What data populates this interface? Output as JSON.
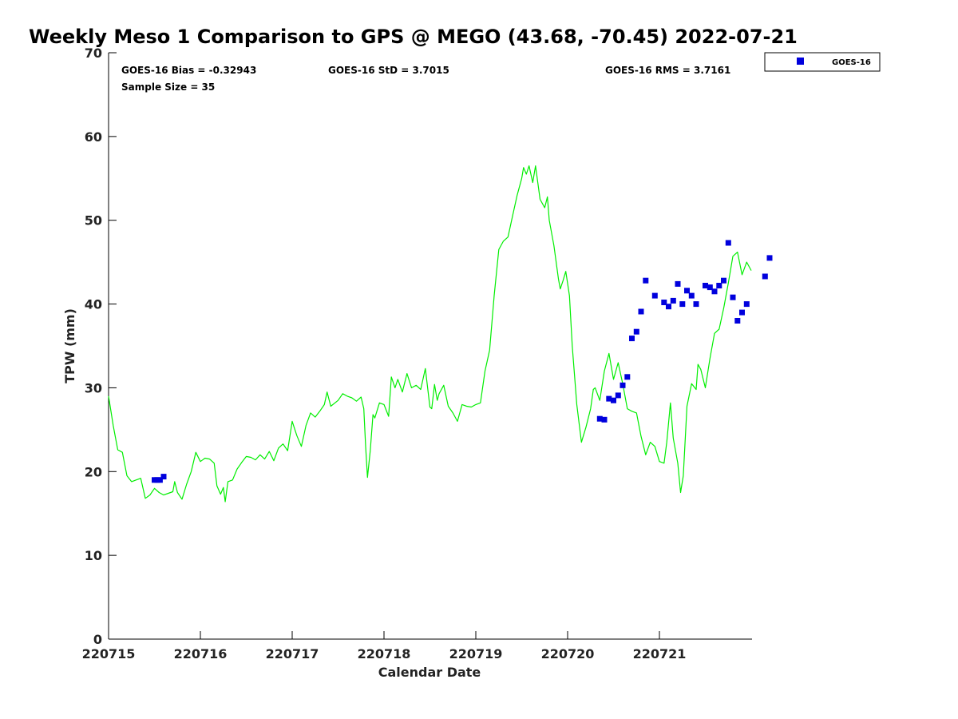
{
  "chart_data": {
    "type": "scatter",
    "title": "Weekly Meso 1 Comparison to GPS @ MEGO (43.68, -70.45) 2022-07-21",
    "xlabel": "Calendar Date",
    "ylabel": "TPW (mm)",
    "xlim": [
      0,
      7
    ],
    "ylim": [
      0,
      70
    ],
    "x_unit": "days from 220715",
    "x_ticks": [
      {
        "value": 0,
        "label": "220715"
      },
      {
        "value": 1,
        "label": "220716"
      },
      {
        "value": 2,
        "label": "220717"
      },
      {
        "value": 3,
        "label": "220718"
      },
      {
        "value": 4,
        "label": "220719"
      },
      {
        "value": 5,
        "label": "220720"
      },
      {
        "value": 6,
        "label": "220721"
      }
    ],
    "y_ticks": [
      0,
      10,
      20,
      30,
      40,
      50,
      60,
      70
    ],
    "grid": false,
    "legend": {
      "position": "top-right-outside",
      "entries": [
        "GOES-16"
      ]
    },
    "stats": {
      "bias": "GOES-16 Bias = -0.32943",
      "std": "GOES-16 StD = 3.7015",
      "rms": "GOES-16 RMS = 3.7161",
      "sample": "Sample Size = 35"
    },
    "series": [
      {
        "name": "GPS",
        "kind": "line",
        "color": "#00ee00",
        "points": [
          [
            0.0,
            29.0
          ],
          [
            0.05,
            25.5
          ],
          [
            0.1,
            22.6
          ],
          [
            0.15,
            22.3
          ],
          [
            0.2,
            19.5
          ],
          [
            0.25,
            18.8
          ],
          [
            0.3,
            19.0
          ],
          [
            0.35,
            19.2
          ],
          [
            0.4,
            16.8
          ],
          [
            0.45,
            17.2
          ],
          [
            0.5,
            18.0
          ],
          [
            0.55,
            17.5
          ],
          [
            0.6,
            17.2
          ],
          [
            0.65,
            17.4
          ],
          [
            0.7,
            17.6
          ],
          [
            0.72,
            18.8
          ],
          [
            0.75,
            17.5
          ],
          [
            0.8,
            16.7
          ],
          [
            0.85,
            18.5
          ],
          [
            0.9,
            20.0
          ],
          [
            0.95,
            22.3
          ],
          [
            1.0,
            21.2
          ],
          [
            1.05,
            21.6
          ],
          [
            1.1,
            21.5
          ],
          [
            1.15,
            21.0
          ],
          [
            1.18,
            18.3
          ],
          [
            1.22,
            17.3
          ],
          [
            1.25,
            18.1
          ],
          [
            1.27,
            16.4
          ],
          [
            1.3,
            18.8
          ],
          [
            1.35,
            19.0
          ],
          [
            1.4,
            20.3
          ],
          [
            1.45,
            21.1
          ],
          [
            1.5,
            21.8
          ],
          [
            1.55,
            21.7
          ],
          [
            1.6,
            21.4
          ],
          [
            1.65,
            22.0
          ],
          [
            1.7,
            21.5
          ],
          [
            1.75,
            22.4
          ],
          [
            1.8,
            21.3
          ],
          [
            1.85,
            22.8
          ],
          [
            1.9,
            23.3
          ],
          [
            1.95,
            22.5
          ],
          [
            2.0,
            26.0
          ],
          [
            2.05,
            24.3
          ],
          [
            2.1,
            23.0
          ],
          [
            2.15,
            25.5
          ],
          [
            2.2,
            27.0
          ],
          [
            2.25,
            26.5
          ],
          [
            2.3,
            27.2
          ],
          [
            2.35,
            28.0
          ],
          [
            2.38,
            29.5
          ],
          [
            2.42,
            27.8
          ],
          [
            2.5,
            28.5
          ],
          [
            2.55,
            29.3
          ],
          [
            2.6,
            29.0
          ],
          [
            2.65,
            28.8
          ],
          [
            2.7,
            28.4
          ],
          [
            2.75,
            28.9
          ],
          [
            2.78,
            27.5
          ],
          [
            2.8,
            23.0
          ],
          [
            2.82,
            19.3
          ],
          [
            2.85,
            22.5
          ],
          [
            2.88,
            26.8
          ],
          [
            2.9,
            26.4
          ],
          [
            2.95,
            28.2
          ],
          [
            3.0,
            28.0
          ],
          [
            3.05,
            26.6
          ],
          [
            3.08,
            31.3
          ],
          [
            3.12,
            30.0
          ],
          [
            3.15,
            31.0
          ],
          [
            3.2,
            29.5
          ],
          [
            3.25,
            31.7
          ],
          [
            3.3,
            30.0
          ],
          [
            3.35,
            30.3
          ],
          [
            3.4,
            29.8
          ],
          [
            3.45,
            32.3
          ],
          [
            3.5,
            27.7
          ],
          [
            3.52,
            27.5
          ],
          [
            3.55,
            30.4
          ],
          [
            3.58,
            28.5
          ],
          [
            3.6,
            29.3
          ],
          [
            3.65,
            30.3
          ],
          [
            3.7,
            27.8
          ],
          [
            3.75,
            27.0
          ],
          [
            3.8,
            26.0
          ],
          [
            3.85,
            28.0
          ],
          [
            3.9,
            27.8
          ],
          [
            3.95,
            27.7
          ],
          [
            4.0,
            28.0
          ],
          [
            4.05,
            28.2
          ],
          [
            4.1,
            32.0
          ],
          [
            4.15,
            34.5
          ],
          [
            4.2,
            41.0
          ],
          [
            4.25,
            46.5
          ],
          [
            4.3,
            47.5
          ],
          [
            4.35,
            48.0
          ],
          [
            4.4,
            50.5
          ],
          [
            4.45,
            53.0
          ],
          [
            4.5,
            55.0
          ],
          [
            4.52,
            56.3
          ],
          [
            4.55,
            55.5
          ],
          [
            4.58,
            56.5
          ],
          [
            4.62,
            54.5
          ],
          [
            4.65,
            56.5
          ],
          [
            4.7,
            52.5
          ],
          [
            4.75,
            51.5
          ],
          [
            4.78,
            52.8
          ],
          [
            4.8,
            50.0
          ],
          [
            4.85,
            47.0
          ],
          [
            4.9,
            43.0
          ],
          [
            4.92,
            41.8
          ],
          [
            4.95,
            42.8
          ],
          [
            4.98,
            43.9
          ],
          [
            5.02,
            41.0
          ],
          [
            5.05,
            35.0
          ],
          [
            5.1,
            28.0
          ],
          [
            5.15,
            23.5
          ],
          [
            5.2,
            25.3
          ],
          [
            5.25,
            27.5
          ],
          [
            5.28,
            29.8
          ],
          [
            5.3,
            30.0
          ],
          [
            5.35,
            28.5
          ],
          [
            5.4,
            32.0
          ],
          [
            5.45,
            34.1
          ],
          [
            5.5,
            31.0
          ],
          [
            5.55,
            33.0
          ],
          [
            5.6,
            30.5
          ],
          [
            5.65,
            27.5
          ],
          [
            5.7,
            27.2
          ],
          [
            5.75,
            27.0
          ],
          [
            5.8,
            24.2
          ],
          [
            5.85,
            22.0
          ],
          [
            5.9,
            23.5
          ],
          [
            5.95,
            23.0
          ],
          [
            6.0,
            21.2
          ],
          [
            6.05,
            21.0
          ],
          [
            6.08,
            23.5
          ],
          [
            6.12,
            28.2
          ],
          [
            6.15,
            24.0
          ],
          [
            6.2,
            21.0
          ],
          [
            6.23,
            17.5
          ],
          [
            6.26,
            19.5
          ],
          [
            6.3,
            27.8
          ],
          [
            6.35,
            30.5
          ],
          [
            6.4,
            29.8
          ],
          [
            6.42,
            32.8
          ],
          [
            6.45,
            32.2
          ],
          [
            6.5,
            30.0
          ],
          [
            6.55,
            33.5
          ],
          [
            6.6,
            36.5
          ],
          [
            6.65,
            37.0
          ],
          [
            6.7,
            39.5
          ],
          [
            6.75,
            42.5
          ],
          [
            6.8,
            45.7
          ],
          [
            6.85,
            46.2
          ],
          [
            6.9,
            43.5
          ],
          [
            6.95,
            45.0
          ],
          [
            7.0,
            44.0
          ]
        ]
      },
      {
        "name": "GOES-16",
        "kind": "scatter",
        "color": "#0000dd",
        "points": [
          [
            0.5,
            19.0
          ],
          [
            0.53,
            19.0
          ],
          [
            0.56,
            19.0
          ],
          [
            0.6,
            19.4
          ],
          [
            5.35,
            26.3
          ],
          [
            5.4,
            26.2
          ],
          [
            5.45,
            28.7
          ],
          [
            5.5,
            28.5
          ],
          [
            5.55,
            29.1
          ],
          [
            5.6,
            30.3
          ],
          [
            5.65,
            31.3
          ],
          [
            5.7,
            35.9
          ],
          [
            5.75,
            36.7
          ],
          [
            5.8,
            39.1
          ],
          [
            5.85,
            42.8
          ],
          [
            5.95,
            41.0
          ],
          [
            6.05,
            40.2
          ],
          [
            6.1,
            39.7
          ],
          [
            6.15,
            40.4
          ],
          [
            6.2,
            42.4
          ],
          [
            6.25,
            40.0
          ],
          [
            6.3,
            41.6
          ],
          [
            6.35,
            41.0
          ],
          [
            6.4,
            40.0
          ],
          [
            6.5,
            42.2
          ],
          [
            6.55,
            42.0
          ],
          [
            6.6,
            41.5
          ],
          [
            6.65,
            42.2
          ],
          [
            6.7,
            42.8
          ],
          [
            6.75,
            47.3
          ],
          [
            6.8,
            40.8
          ],
          [
            6.85,
            38.0
          ],
          [
            6.9,
            39.0
          ],
          [
            6.95,
            40.0
          ],
          [
            7.15,
            43.3
          ],
          [
            7.2,
            45.5
          ]
        ]
      }
    ]
  }
}
